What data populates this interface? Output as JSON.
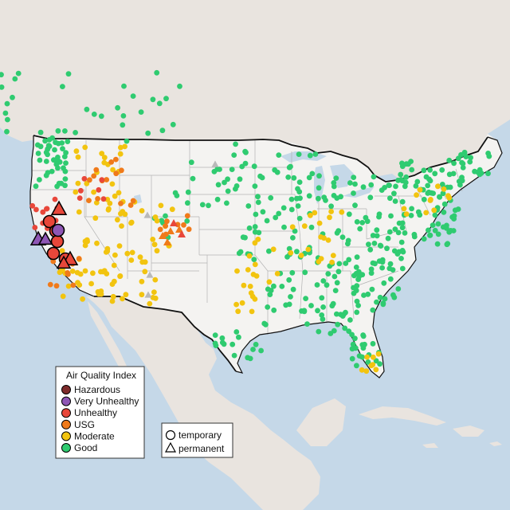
{
  "legend": {
    "title": "Air Quality Index",
    "categories": [
      {
        "key": "hazardous",
        "label": "Hazardous",
        "color": "#7e2b2b"
      },
      {
        "key": "very_unhealthy",
        "label": "Very Unhealthy",
        "color": "#8e56b5"
      },
      {
        "key": "unhealthy",
        "label": "Unhealthy",
        "color": "#e8473a"
      },
      {
        "key": "usg",
        "label": "USG",
        "color": "#f07a1a"
      },
      {
        "key": "moderate",
        "label": "Moderate",
        "color": "#f2c40f"
      },
      {
        "key": "good",
        "label": "Good",
        "color": "#2fcb70"
      }
    ]
  },
  "monitor_legend": {
    "temporary": "temporary",
    "permanent": "permanent"
  },
  "colors": {
    "water": "#c5d8e8",
    "land_us": "#f4f3f1",
    "land_other": "#e9e4df",
    "border": "#111111",
    "no_data": "#b9b9b9"
  }
}
